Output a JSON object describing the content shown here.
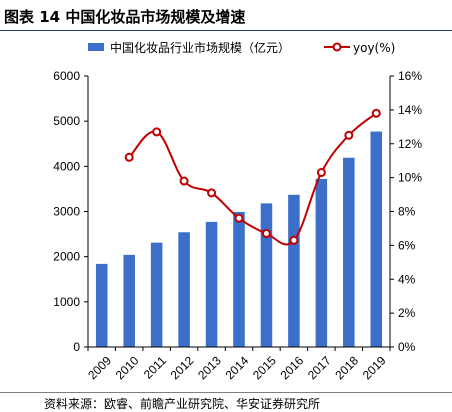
{
  "figure": {
    "title": "图表 14 中国化妆品市场规模及增速",
    "source": "资料来源：欧睿、前瞻产业研究院、华安证券研究所"
  },
  "colors": {
    "bar": "#3b6fc9",
    "line": "#c00000",
    "marker_fill": "#ffffff",
    "axis": "#000000",
    "rule": "#1f3d7a"
  },
  "chart_data": {
    "type": "bar",
    "categories": [
      "2009",
      "2010",
      "2011",
      "2012",
      "2013",
      "2014",
      "2015",
      "2016",
      "2017",
      "2018",
      "2019"
    ],
    "series": [
      {
        "name": "中国化妆品行业市场规模（亿元）",
        "type": "bar",
        "axis": "left",
        "values": [
          1840,
          2040,
          2310,
          2540,
          2770,
          2990,
          3180,
          3370,
          3720,
          4190,
          4770
        ]
      },
      {
        "name": "yoy(%)",
        "type": "line",
        "axis": "right",
        "values": [
          null,
          11.2,
          12.7,
          9.8,
          9.1,
          7.6,
          6.7,
          6.3,
          10.3,
          12.5,
          13.8
        ]
      }
    ],
    "y_left": {
      "lim": [
        0,
        6000
      ],
      "ticks": [
        "0",
        "1000",
        "2000",
        "3000",
        "4000",
        "5000",
        "6000"
      ]
    },
    "y_right": {
      "lim": [
        0,
        16
      ],
      "ticks": [
        "0%",
        "2%",
        "4%",
        "6%",
        "8%",
        "10%",
        "12%",
        "14%",
        "16%"
      ]
    },
    "legend_position": "top",
    "grid": false
  }
}
